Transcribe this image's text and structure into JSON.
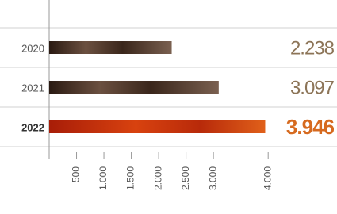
{
  "chart_data": {
    "type": "hbar",
    "categories": [
      "2020",
      "2021",
      "2022"
    ],
    "values": [
      2238,
      3097,
      3946
    ],
    "value_labels": [
      "2.238",
      "3.097",
      "3.946"
    ],
    "colors": [
      "#4a3326",
      "#4a3326",
      "#c8300c"
    ],
    "label_colors": [
      "#8c7457",
      "#8c7457",
      "#d66a1f"
    ],
    "xlim": [
      0,
      4200
    ],
    "xticks": [
      500,
      {
        "value": 1000,
        "label": "1.000"
      },
      {
        "value": 1500,
        "label": "1.500"
      },
      {
        "value": 2000,
        "label": "2.000"
      },
      {
        "value": 2500,
        "label": "2.500"
      },
      {
        "value": 3000,
        "label": "3.000"
      },
      {
        "value": 4000,
        "label": "4.000"
      }
    ],
    "highlight": "2022"
  }
}
